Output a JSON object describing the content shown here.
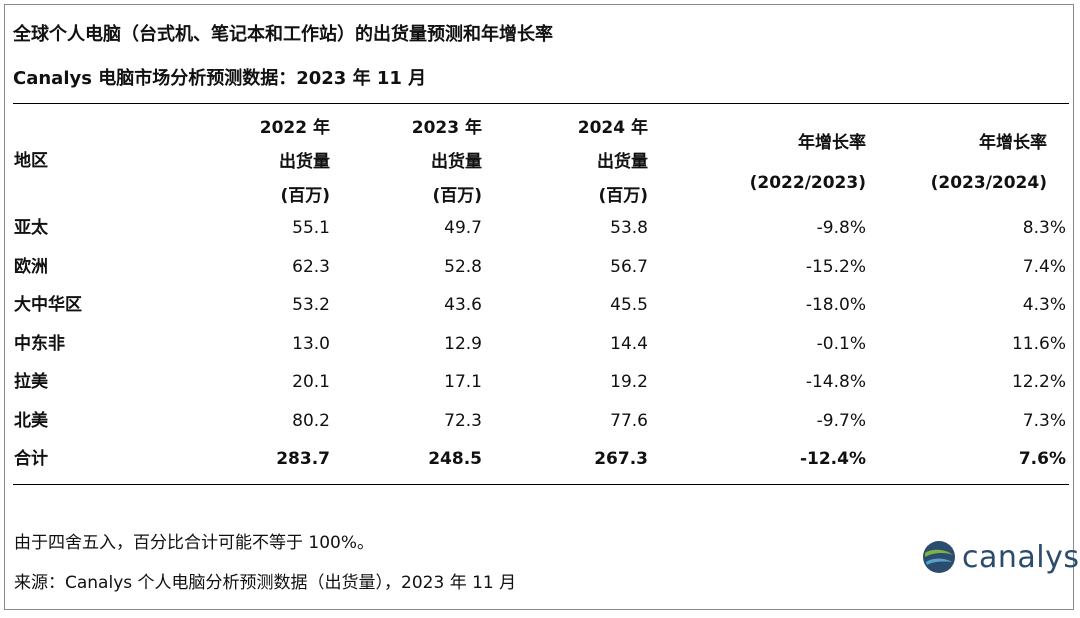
{
  "title": "全球个人电脑（台式机、笔记本和工作站）的出货量预测和年增长率",
  "subtitle": "Canalys 电脑市场分析预测数据：2023 年 11 月",
  "header": {
    "region": "地区",
    "col1": [
      "2022 年",
      "出货量",
      "(百万)"
    ],
    "col2": [
      "2023 年",
      "出货量",
      "(百万)"
    ],
    "col3": [
      "2024 年",
      "出货量",
      "(百万)"
    ],
    "col4": [
      "年增长率",
      "(2022/2023)"
    ],
    "col5": [
      "年增长率",
      "(2023/2024)"
    ]
  },
  "chart_data": {
    "type": "table",
    "title": "全球个人电脑（台式机、笔记本和工作站）的出货量预测和年增长率",
    "columns": [
      "地区",
      "2022 年 出货量 (百万)",
      "2023 年 出货量 (百万)",
      "2024 年 出货量 (百万)",
      "年增长率 (2022/2023)",
      "年增长率 (2023/2024)"
    ],
    "rows": [
      [
        "亚太",
        "55.1",
        "49.7",
        "53.8",
        "-9.8%",
        "8.3%"
      ],
      [
        "欧洲",
        "62.3",
        "52.8",
        "56.7",
        "-15.2%",
        "7.4%"
      ],
      [
        "大中华区",
        "53.2",
        "43.6",
        "45.5",
        "-18.0%",
        "4.3%"
      ],
      [
        "中东非",
        "13.0",
        "12.9",
        "14.4",
        "-0.1%",
        "11.6%"
      ],
      [
        "拉美",
        "20.1",
        "17.1",
        "19.2",
        "-14.8%",
        "12.2%"
      ],
      [
        "北美",
        "80.2",
        "72.3",
        "77.6",
        "-9.7%",
        "7.3%"
      ]
    ],
    "total": [
      "合计",
      "283.7",
      "248.5",
      "267.3",
      "-12.4%",
      "7.6%"
    ]
  },
  "notes": {
    "rounding": "由于四舍五入，百分比合计可能不等于 100%。",
    "source": "来源：Canalys 个人电脑分析预测数据（出货量），2023 年 11 月"
  },
  "logo": {
    "text": "canalys",
    "icon": "canalys-globe-icon"
  },
  "colors": {
    "logo_blue": "#2b4c6e",
    "logo_green": "#7cb342"
  }
}
